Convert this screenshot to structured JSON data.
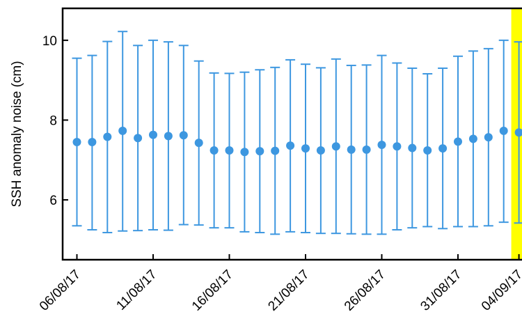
{
  "chart_data": {
    "type": "scatter",
    "title": "",
    "xlabel": "",
    "ylabel": "SSH anomaly noise (cm)",
    "x_tick_labels": [
      "06/08/17",
      "11/08/17",
      "16/08/17",
      "21/08/17",
      "26/08/17",
      "31/08/17",
      "04/09/17"
    ],
    "y_ticks": [
      6,
      8,
      10
    ],
    "ylim": [
      4.5,
      10.8
    ],
    "grid": false,
    "series": [
      {
        "points": [
          {
            "date": "06/08/17",
            "y": 7.45,
            "low": 5.35,
            "high": 9.55
          },
          {
            "date": "07/08/17",
            "y": 7.45,
            "low": 5.25,
            "high": 9.62
          },
          {
            "date": "08/08/17",
            "y": 7.58,
            "low": 5.18,
            "high": 9.97
          },
          {
            "date": "09/08/17",
            "y": 7.73,
            "low": 5.22,
            "high": 10.22
          },
          {
            "date": "10/08/17",
            "y": 7.55,
            "low": 5.23,
            "high": 9.87
          },
          {
            "date": "11/08/17",
            "y": 7.63,
            "low": 5.25,
            "high": 10.0
          },
          {
            "date": "12/08/17",
            "y": 7.6,
            "low": 5.24,
            "high": 9.96
          },
          {
            "date": "13/08/17",
            "y": 7.62,
            "low": 5.38,
            "high": 9.87
          },
          {
            "date": "14/08/17",
            "y": 7.43,
            "low": 5.37,
            "high": 9.48
          },
          {
            "date": "15/08/17",
            "y": 7.24,
            "low": 5.3,
            "high": 9.18
          },
          {
            "date": "16/08/17",
            "y": 7.24,
            "low": 5.3,
            "high": 9.17
          },
          {
            "date": "17/08/17",
            "y": 7.2,
            "low": 5.2,
            "high": 9.2
          },
          {
            "date": "18/08/17",
            "y": 7.22,
            "low": 5.18,
            "high": 9.26
          },
          {
            "date": "19/08/17",
            "y": 7.23,
            "low": 5.14,
            "high": 9.32
          },
          {
            "date": "20/08/17",
            "y": 7.36,
            "low": 5.2,
            "high": 9.51
          },
          {
            "date": "21/08/17",
            "y": 7.29,
            "low": 5.18,
            "high": 9.4
          },
          {
            "date": "22/08/17",
            "y": 7.24,
            "low": 5.16,
            "high": 9.31
          },
          {
            "date": "23/08/17",
            "y": 7.34,
            "low": 5.16,
            "high": 9.53
          },
          {
            "date": "24/08/17",
            "y": 7.26,
            "low": 5.15,
            "high": 9.37
          },
          {
            "date": "25/08/17",
            "y": 7.26,
            "low": 5.14,
            "high": 9.38
          },
          {
            "date": "26/08/17",
            "y": 7.38,
            "low": 5.14,
            "high": 9.62
          },
          {
            "date": "27/08/17",
            "y": 7.34,
            "low": 5.25,
            "high": 9.43
          },
          {
            "date": "28/08/17",
            "y": 7.3,
            "low": 5.3,
            "high": 9.3
          },
          {
            "date": "29/08/17",
            "y": 7.24,
            "low": 5.33,
            "high": 9.16
          },
          {
            "date": "30/08/17",
            "y": 7.29,
            "low": 5.28,
            "high": 9.3
          },
          {
            "date": "31/08/17",
            "y": 7.46,
            "low": 5.33,
            "high": 9.6
          },
          {
            "date": "01/09/17",
            "y": 7.53,
            "low": 5.33,
            "high": 9.73
          },
          {
            "date": "02/09/17",
            "y": 7.57,
            "low": 5.35,
            "high": 9.79
          },
          {
            "date": "03/09/17",
            "y": 7.73,
            "low": 5.44,
            "high": 10.0
          },
          {
            "date": "04/09/17",
            "y": 7.69,
            "low": 5.42,
            "high": 9.96
          }
        ]
      }
    ],
    "highlight": {
      "date": "04/09/17",
      "color": "#ffff00"
    },
    "colors": {
      "marker": "#3d97e0",
      "axis": "#000000",
      "background": "#ffffff"
    }
  }
}
